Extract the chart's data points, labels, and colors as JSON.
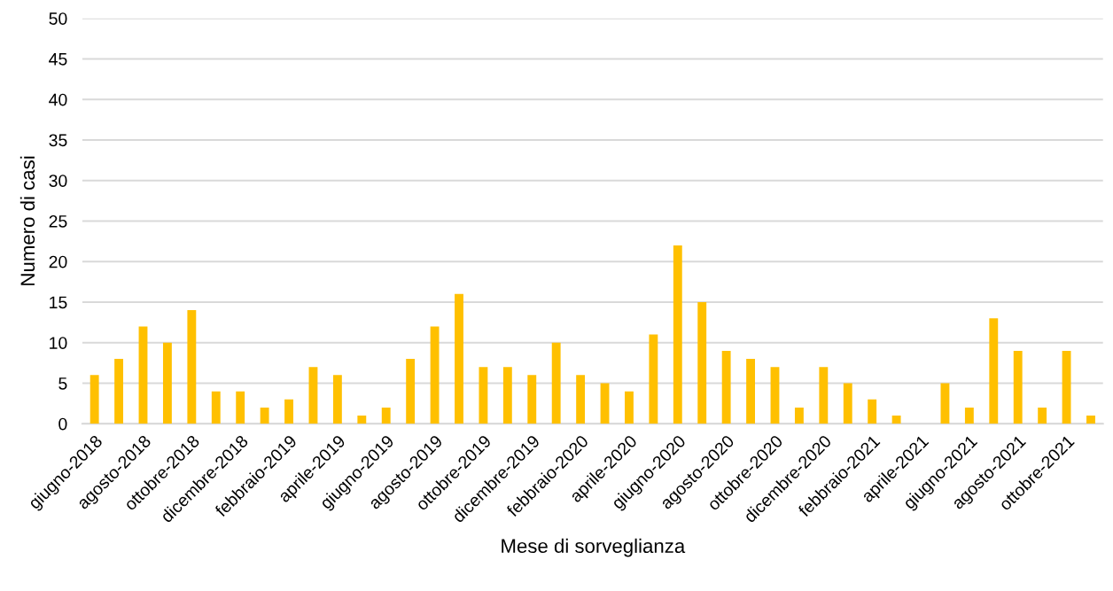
{
  "chart_data": {
    "type": "bar",
    "xlabel": "Mese di sorveglianza",
    "ylabel": "Numero di casi",
    "categories": [
      "giugno-2018",
      null,
      "agosto-2018",
      null,
      "ottobre-2018",
      null,
      "dicembre-2018",
      null,
      "febbraio-2019",
      null,
      "aprile-2019",
      null,
      "giugno-2019",
      null,
      "agosto-2019",
      null,
      "ottobre-2019",
      null,
      "dicembre-2019",
      null,
      "febbraio-2020",
      null,
      "aprile-2020",
      null,
      "giugno-2020",
      null,
      "agosto-2020",
      null,
      "ottobre-2020",
      null,
      "dicembre-2020",
      null,
      "febbraio-2021",
      null,
      "aprile-2021",
      null,
      "giugno-2021",
      null,
      "agosto-2021",
      null,
      "ottobre-2021",
      null
    ],
    "values": [
      6,
      8,
      12,
      10,
      14,
      4,
      4,
      2,
      3,
      7,
      6,
      1,
      2,
      8,
      12,
      16,
      7,
      7,
      6,
      10,
      6,
      5,
      4,
      11,
      22,
      15,
      9,
      8,
      7,
      2,
      7,
      5,
      3,
      1,
      0,
      5,
      2,
      13,
      9,
      2,
      9,
      1
    ],
    "color": "#ffc000",
    "ylim": [
      0,
      50
    ],
    "yticks": [
      0,
      5,
      10,
      15,
      20,
      25,
      30,
      35,
      40,
      45,
      50
    ],
    "grid": "y",
    "legend": false
  }
}
